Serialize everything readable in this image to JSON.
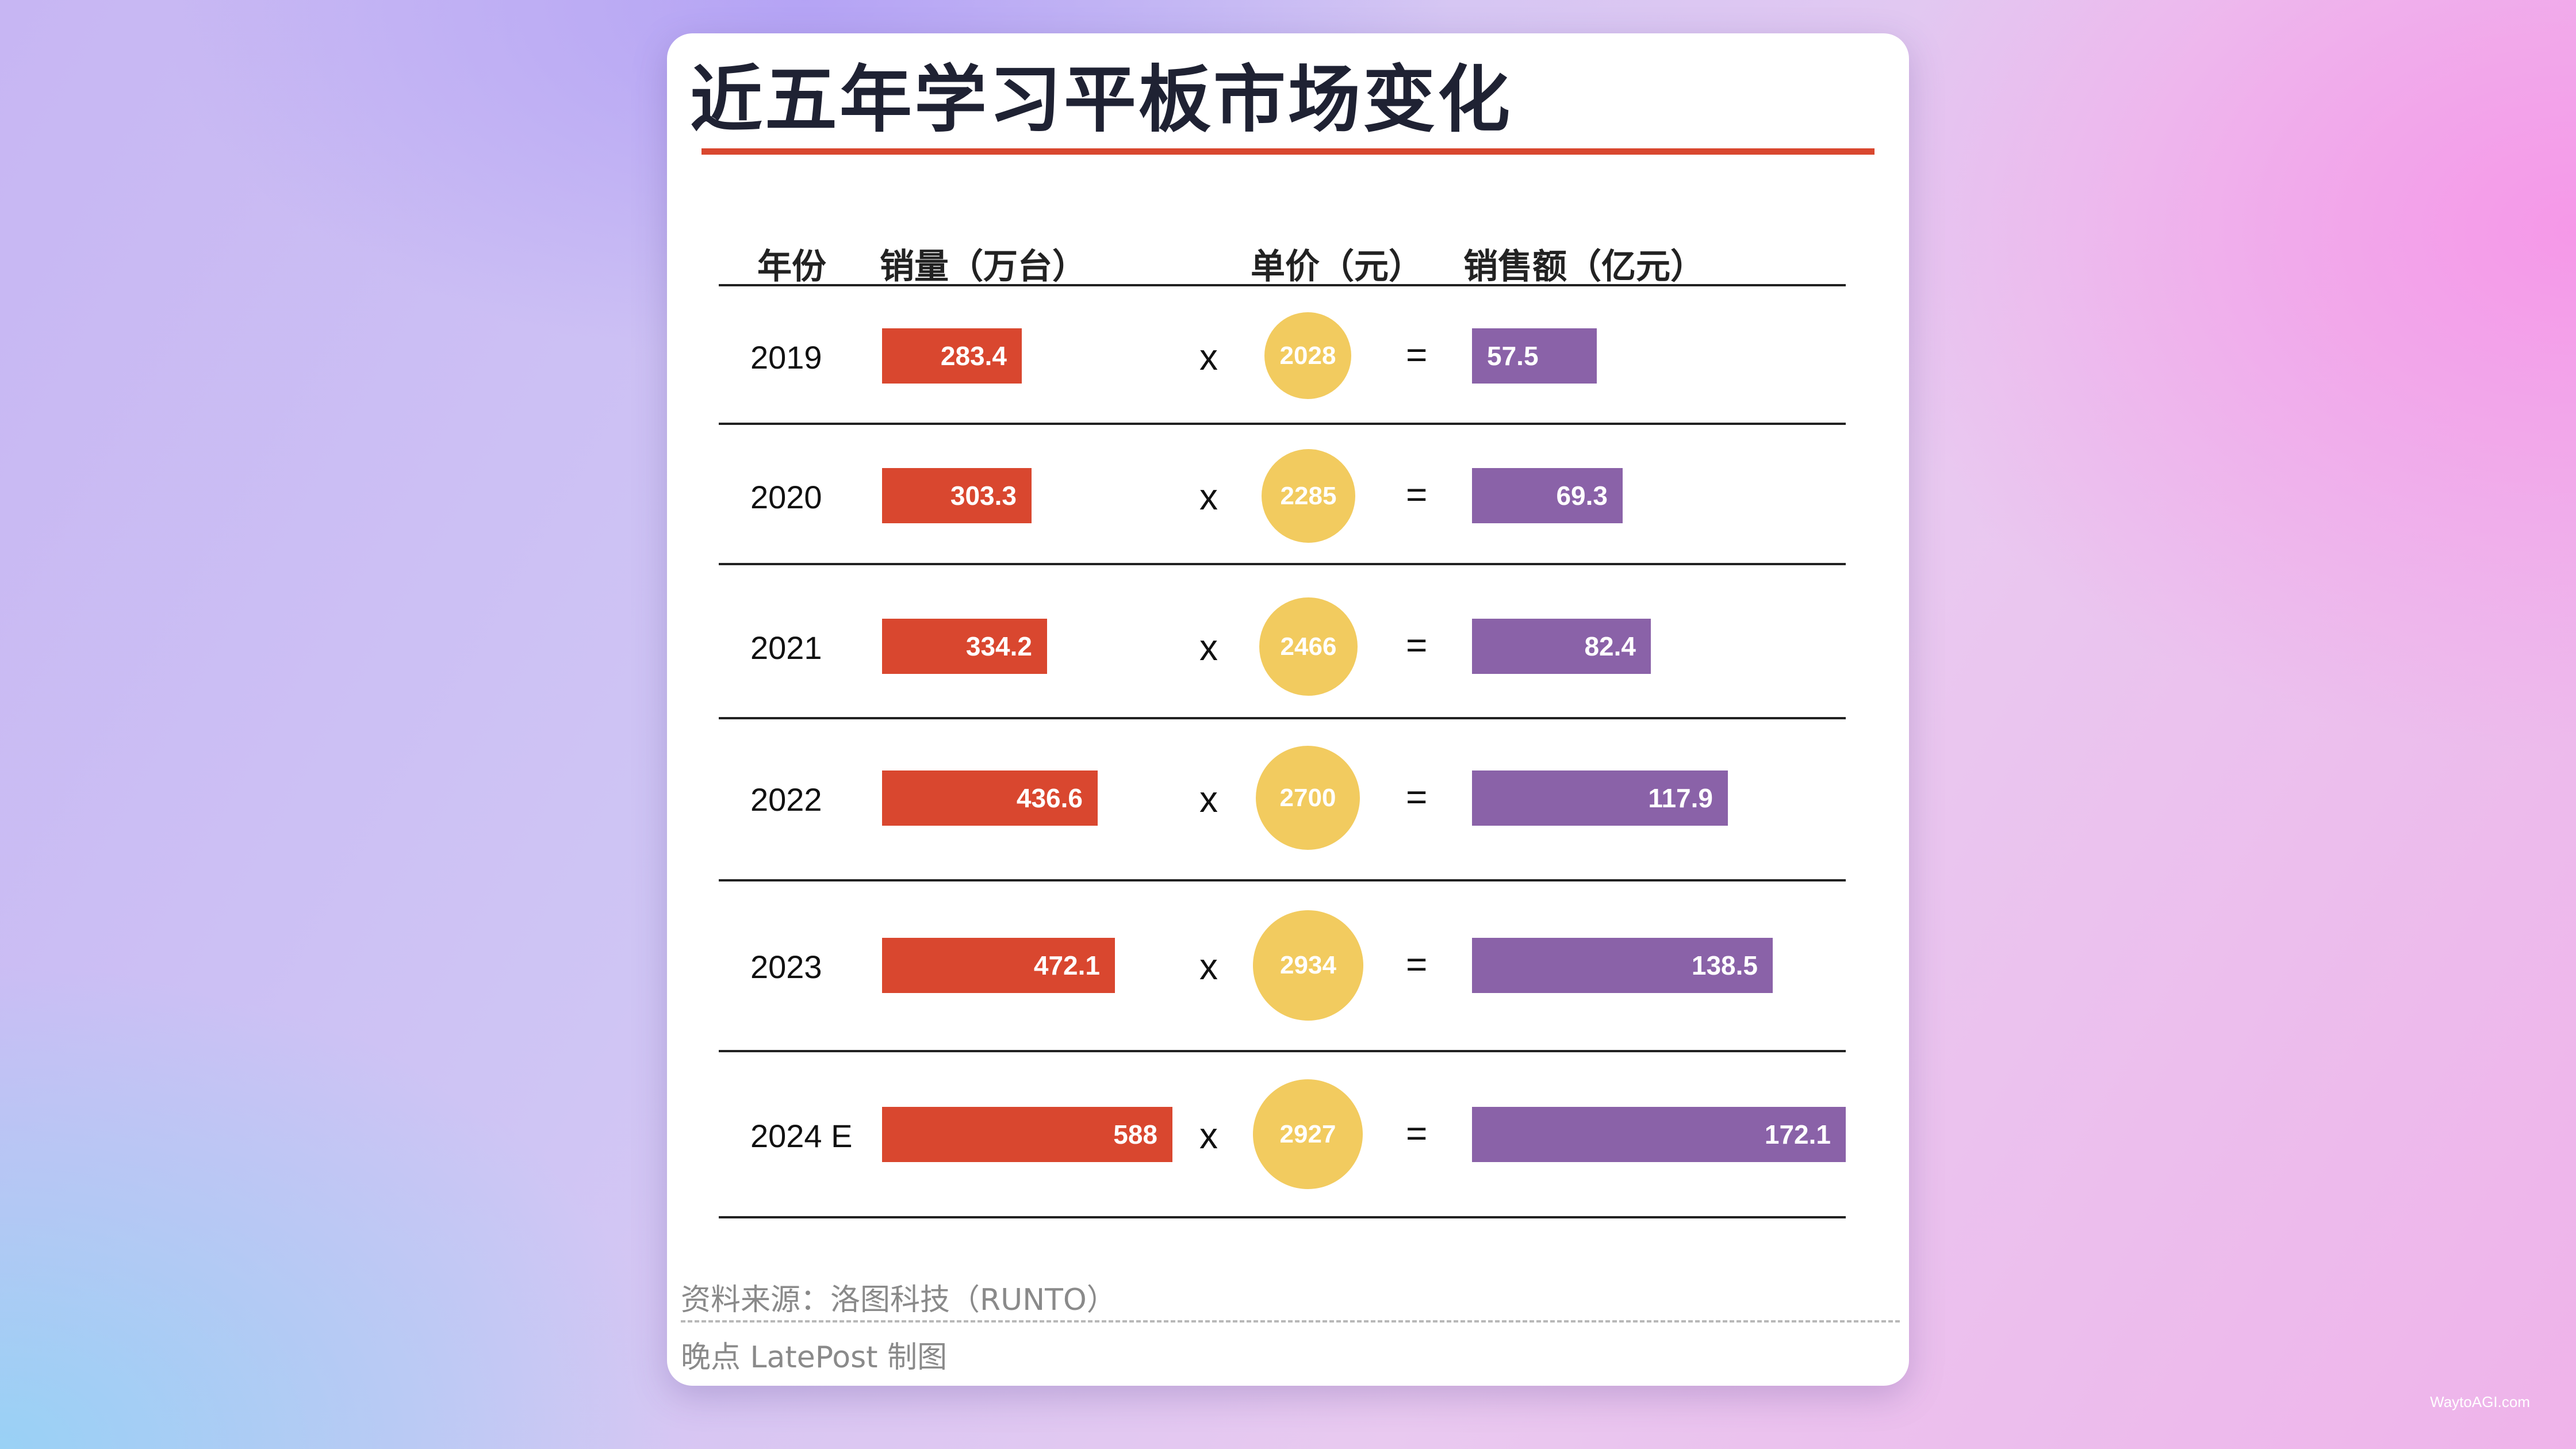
{
  "title": "近五年学习平板市场变化",
  "headers": {
    "year": "年份",
    "sales": "销量（万台）",
    "price": "单价（元）",
    "revenue": "销售额（亿元）"
  },
  "operators": {
    "multiply": "x",
    "equals": "="
  },
  "colors": {
    "sales_bar": "#d9472f",
    "revenue_bar": "#8a62a8",
    "price_circle": "#f2cb5f",
    "title_rule": "#d9472f"
  },
  "chart_data": {
    "type": "table",
    "title": "近五年学习平板市场变化",
    "columns": [
      "年份",
      "销量（万台）",
      "单价（元）",
      "销售额（亿元）"
    ],
    "rows": [
      {
        "year": "2019",
        "sales": 283.4,
        "price": 2028,
        "revenue": 57.5
      },
      {
        "year": "2020",
        "sales": 303.3,
        "price": 2285,
        "revenue": 69.3
      },
      {
        "year": "2021",
        "sales": 334.2,
        "price": 2466,
        "revenue": 82.4
      },
      {
        "year": "2022",
        "sales": 436.6,
        "price": 2700,
        "revenue": 117.9
      },
      {
        "year": "2023",
        "sales": 472.1,
        "price": 2934,
        "revenue": 138.5
      },
      {
        "year": "2024 E",
        "sales": 588,
        "price": 2927,
        "revenue": 172.1
      }
    ]
  },
  "footer": {
    "source": "资料来源：洛图科技（RUNTO）",
    "credit": "晚点 LatePost 制图"
  },
  "site_mark": "WaytoAGI.com"
}
